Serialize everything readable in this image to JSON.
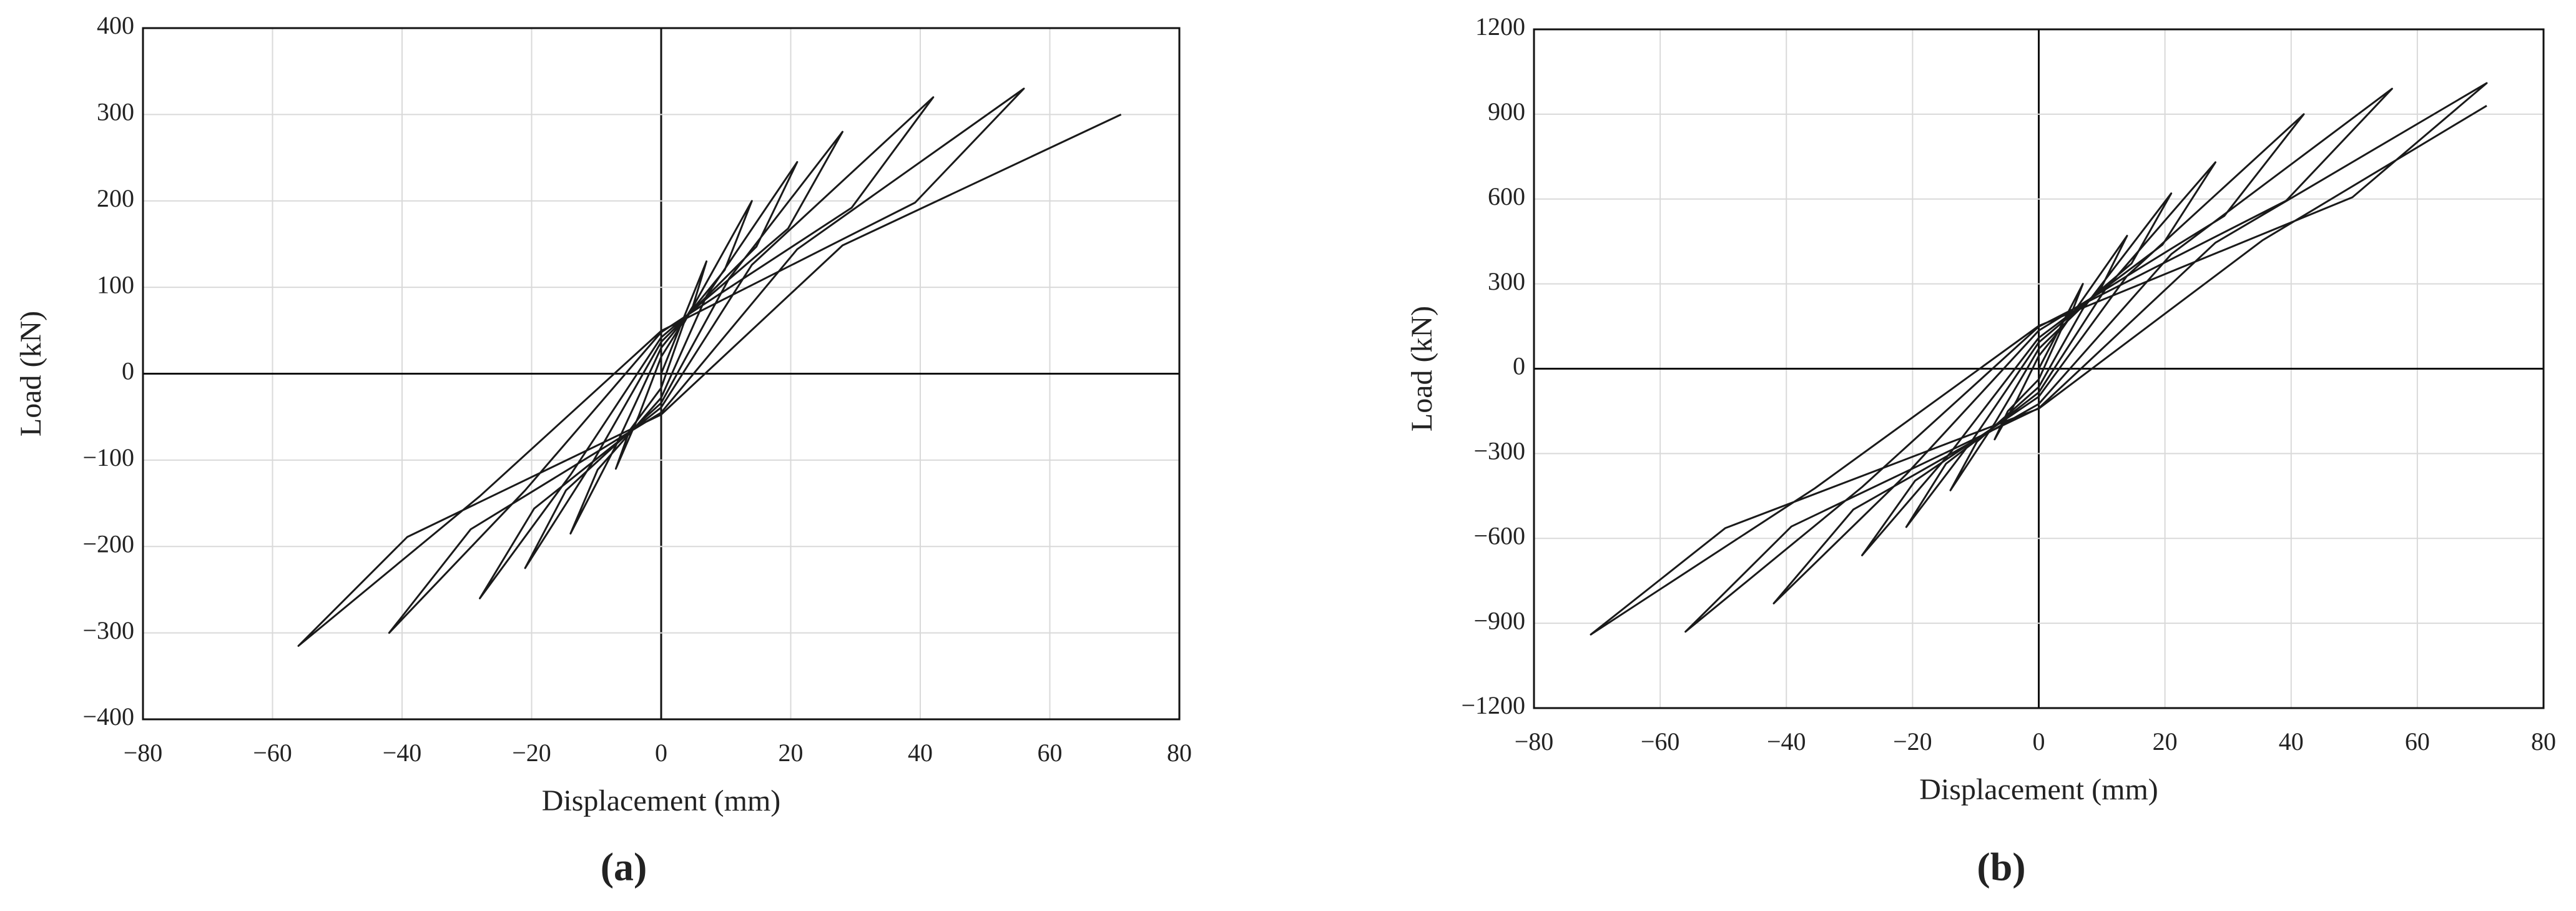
{
  "chart_data": [
    {
      "type": "line",
      "panel_label": "(a)",
      "xlabel": "Displacement (mm)",
      "ylabel": "Load (kN)",
      "xlim": [
        -80,
        80
      ],
      "ylim": [
        -400,
        400
      ],
      "grid": true,
      "xticks": [
        {
          "value": -80,
          "label": "−80"
        },
        {
          "value": -60,
          "label": "−60"
        },
        {
          "value": -40,
          "label": "−40"
        },
        {
          "value": -20,
          "label": "−20"
        },
        0,
        20,
        40,
        60,
        80
      ],
      "yticks": [
        {
          "value": -400,
          "label": "−400"
        },
        {
          "value": -300,
          "label": "−300"
        },
        {
          "value": -200,
          "label": "−200"
        },
        {
          "value": -100,
          "label": "−100"
        },
        0,
        100,
        200,
        300,
        400
      ],
      "x": [
        0,
        7,
        4.9,
        0,
        -3.5,
        -7,
        -4.9,
        0,
        3.5,
        14,
        9.8,
        0,
        -7,
        -14,
        -9.8,
        0,
        7,
        21,
        14.7,
        0,
        -10.5,
        -21,
        -14.7,
        0,
        10.5,
        28,
        19.6,
        0,
        -14,
        -28,
        -19.6,
        0,
        14,
        42,
        29.4,
        0,
        -21,
        -42,
        -29.4,
        0,
        21,
        56,
        39.2,
        0,
        -28,
        -56,
        -39.2,
        0,
        28,
        71
      ],
      "series": [
        {
          "color": "#1a1a1a",
          "values": [
            0,
            130,
            78,
            19.5,
            -49.5,
            -110,
            -66,
            -16.5,
            58.5,
            200,
            120,
            30,
            -83.3,
            -185,
            -111,
            -27.8,
            90,
            245,
            147,
            36.8,
            -101.3,
            -225,
            -135,
            -33.8,
            110.3,
            280,
            168,
            42,
            -117,
            -260,
            -156,
            -39,
            126,
            320,
            192,
            48,
            -135,
            -300,
            -180,
            -45,
            144,
            330,
            198,
            49.5,
            -141.8,
            -315,
            -189,
            -47.3,
            148.5,
            300
          ]
        }
      ]
    },
    {
      "type": "line",
      "panel_label": "(b)",
      "xlabel": "Displacement (mm)",
      "ylabel": "Load (kN)",
      "xlim": [
        -80,
        80
      ],
      "ylim": [
        -1200,
        1200
      ],
      "grid": true,
      "xticks": [
        {
          "value": -80,
          "label": "−80"
        },
        {
          "value": -60,
          "label": "−60"
        },
        {
          "value": -40,
          "label": "−40"
        },
        {
          "value": -20,
          "label": "−20"
        },
        0,
        20,
        40,
        60,
        80
      ],
      "yticks": [
        {
          "value": -1200,
          "label": "−1200"
        },
        {
          "value": -900,
          "label": "−900"
        },
        {
          "value": -600,
          "label": "−600"
        },
        {
          "value": -300,
          "label": "−300"
        },
        0,
        300,
        600,
        900,
        1200
      ],
      "x": [
        0,
        7,
        4.9,
        0,
        -3.5,
        -7,
        -4.9,
        0,
        3.5,
        14,
        9.8,
        0,
        -7,
        -14,
        -9.8,
        0,
        7,
        21,
        14.7,
        0,
        -10.5,
        -21,
        -14.7,
        0,
        10.5,
        28,
        19.6,
        0,
        -14,
        -28,
        -19.6,
        0,
        14,
        42,
        29.4,
        0,
        -21,
        -42,
        -29.4,
        0,
        21,
        56,
        39.2,
        0,
        -28,
        -56,
        -39.2,
        0,
        28,
        71,
        49.7,
        0,
        -35.5,
        -71,
        -49.7,
        0,
        35.5,
        71
      ],
      "series": [
        {
          "color": "#1a1a1a",
          "values": [
            0,
            300,
            180,
            45,
            -112.5,
            -250,
            -150,
            -37.5,
            135,
            470,
            282,
            70.5,
            -193.5,
            -430,
            -258,
            -64.5,
            211.5,
            620,
            372,
            93,
            -252,
            -560,
            -336,
            -84,
            279,
            730,
            438,
            109.5,
            -297,
            -660,
            -396,
            -99,
            328.5,
            900,
            540,
            135,
            -373.5,
            -830,
            -498,
            -124.5,
            405,
            990,
            594,
            148.5,
            -418.5,
            -930,
            -558,
            -139.5,
            445.5,
            1010,
            606,
            151.5,
            -423,
            -940,
            -564,
            -141,
            454.5,
            930
          ]
        }
      ]
    }
  ]
}
